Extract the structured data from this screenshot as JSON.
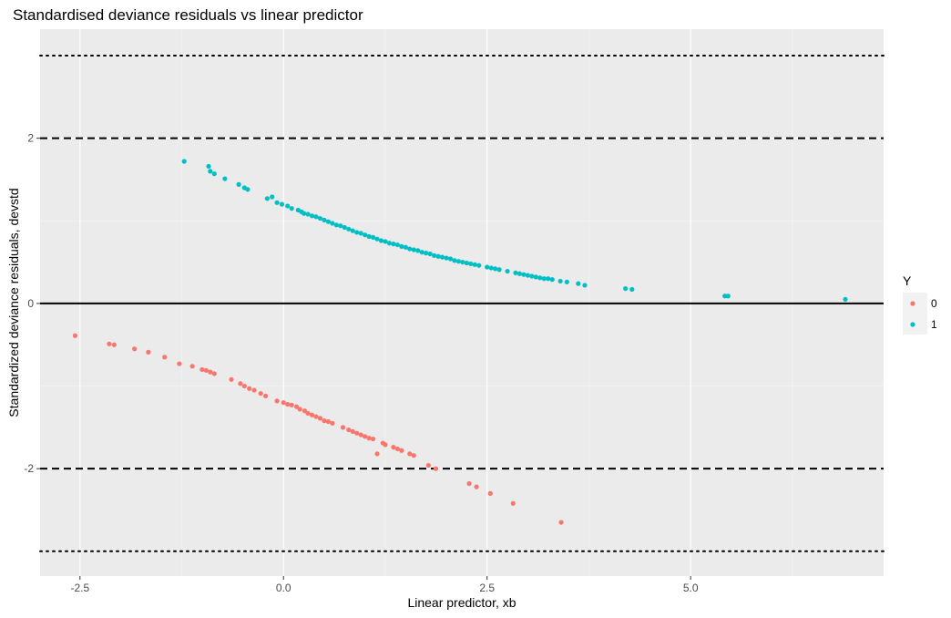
{
  "chart_data": {
    "type": "scatter",
    "title": "Standardised deviance residuals vs linear predictor",
    "xlabel": "Linear predictor, xb",
    "ylabel": "Standardized deviance residuals, devstd",
    "xlim": [
      -2.99,
      7.37
    ],
    "ylim": [
      -3.3,
      3.32
    ],
    "x_ticks": [
      -2.5,
      0.0,
      2.5,
      5.0
    ],
    "x_tick_labels": [
      "-2.5",
      "0.0",
      "2.5",
      "5.0"
    ],
    "y_ticks": [
      -2,
      0,
      2
    ],
    "y_tick_labels": [
      "-2",
      "0",
      "2"
    ],
    "grid": true,
    "background": "#ebebeb",
    "reference_lines": [
      {
        "y": 3,
        "style": "dotted"
      },
      {
        "y": 2,
        "style": "dashed"
      },
      {
        "y": 0,
        "style": "solid"
      },
      {
        "y": -2,
        "style": "dashed"
      },
      {
        "y": -3,
        "style": "dotted"
      }
    ],
    "legend": {
      "title": "Y",
      "position": "right"
    },
    "series": [
      {
        "name": "0",
        "color": "#F8766D",
        "points": [
          [
            -2.56,
            -0.39
          ],
          [
            -2.14,
            -0.49
          ],
          [
            -2.08,
            -0.5
          ],
          [
            -1.83,
            -0.55
          ],
          [
            -1.66,
            -0.59
          ],
          [
            -1.46,
            -0.65
          ],
          [
            -1.28,
            -0.73
          ],
          [
            -1.12,
            -0.76
          ],
          [
            -1.0,
            -0.8
          ],
          [
            -0.95,
            -0.81
          ],
          [
            -0.9,
            -0.83
          ],
          [
            -0.85,
            -0.85
          ],
          [
            -0.64,
            -0.92
          ],
          [
            -0.53,
            -0.97
          ],
          [
            -0.48,
            -1.0
          ],
          [
            -0.42,
            -1.03
          ],
          [
            -0.36,
            -1.05
          ],
          [
            -0.28,
            -1.09
          ],
          [
            -0.22,
            -1.12
          ],
          [
            -0.08,
            -1.18
          ],
          [
            0.0,
            -1.2
          ],
          [
            0.05,
            -1.22
          ],
          [
            0.1,
            -1.23
          ],
          [
            0.16,
            -1.25
          ],
          [
            0.2,
            -1.28
          ],
          [
            0.26,
            -1.3
          ],
          [
            0.3,
            -1.33
          ],
          [
            0.35,
            -1.35
          ],
          [
            0.4,
            -1.37
          ],
          [
            0.45,
            -1.39
          ],
          [
            0.5,
            -1.42
          ],
          [
            0.55,
            -1.43
          ],
          [
            0.6,
            -1.45
          ],
          [
            0.73,
            -1.5
          ],
          [
            0.8,
            -1.53
          ],
          [
            0.85,
            -1.55
          ],
          [
            0.9,
            -1.57
          ],
          [
            0.95,
            -1.59
          ],
          [
            1.0,
            -1.61
          ],
          [
            1.05,
            -1.63
          ],
          [
            1.1,
            -1.64
          ],
          [
            1.22,
            -1.69
          ],
          [
            1.25,
            -1.71
          ],
          [
            1.35,
            -1.74
          ],
          [
            1.4,
            -1.76
          ],
          [
            1.45,
            -1.78
          ],
          [
            1.55,
            -1.82
          ],
          [
            1.6,
            -1.84
          ],
          [
            1.15,
            -1.82
          ],
          [
            1.78,
            -1.96
          ],
          [
            1.87,
            -2.0
          ],
          [
            2.28,
            -2.18
          ],
          [
            2.37,
            -2.22
          ],
          [
            2.54,
            -2.3
          ],
          [
            2.82,
            -2.42
          ],
          [
            3.41,
            -2.65
          ]
        ]
      },
      {
        "name": "1",
        "color": "#00BFC4",
        "points": [
          [
            -1.22,
            1.72
          ],
          [
            -0.92,
            1.66
          ],
          [
            -0.9,
            1.6
          ],
          [
            -0.85,
            1.57
          ],
          [
            -0.72,
            1.51
          ],
          [
            -0.55,
            1.44
          ],
          [
            -0.48,
            1.4
          ],
          [
            -0.44,
            1.38
          ],
          [
            -0.2,
            1.27
          ],
          [
            -0.14,
            1.29
          ],
          [
            -0.08,
            1.22
          ],
          [
            -0.02,
            1.2
          ],
          [
            0.05,
            1.18
          ],
          [
            0.1,
            1.15
          ],
          [
            0.18,
            1.13
          ],
          [
            0.22,
            1.11
          ],
          [
            0.25,
            1.09
          ],
          [
            0.3,
            1.08
          ],
          [
            0.35,
            1.06
          ],
          [
            0.4,
            1.05
          ],
          [
            0.45,
            1.03
          ],
          [
            0.5,
            1.01
          ],
          [
            0.55,
            0.99
          ],
          [
            0.6,
            0.97
          ],
          [
            0.65,
            0.95
          ],
          [
            0.7,
            0.94
          ],
          [
            0.75,
            0.92
          ],
          [
            0.8,
            0.9
          ],
          [
            0.85,
            0.88
          ],
          [
            0.9,
            0.86
          ],
          [
            0.95,
            0.85
          ],
          [
            1.0,
            0.83
          ],
          [
            1.05,
            0.81
          ],
          [
            1.1,
            0.8
          ],
          [
            1.15,
            0.78
          ],
          [
            1.2,
            0.76
          ],
          [
            1.25,
            0.75
          ],
          [
            1.3,
            0.73
          ],
          [
            1.35,
            0.72
          ],
          [
            1.4,
            0.71
          ],
          [
            1.45,
            0.69
          ],
          [
            1.5,
            0.68
          ],
          [
            1.55,
            0.66
          ],
          [
            1.6,
            0.65
          ],
          [
            1.65,
            0.64
          ],
          [
            1.7,
            0.62
          ],
          [
            1.75,
            0.61
          ],
          [
            1.8,
            0.6
          ],
          [
            1.85,
            0.58
          ],
          [
            1.9,
            0.57
          ],
          [
            1.95,
            0.56
          ],
          [
            2.0,
            0.55
          ],
          [
            2.05,
            0.54
          ],
          [
            2.1,
            0.52
          ],
          [
            2.15,
            0.51
          ],
          [
            2.2,
            0.5
          ],
          [
            2.25,
            0.49
          ],
          [
            2.3,
            0.48
          ],
          [
            2.35,
            0.47
          ],
          [
            2.4,
            0.46
          ],
          [
            2.5,
            0.44
          ],
          [
            2.55,
            0.43
          ],
          [
            2.6,
            0.42
          ],
          [
            2.65,
            0.41
          ],
          [
            2.75,
            0.39
          ],
          [
            2.85,
            0.37
          ],
          [
            2.9,
            0.36
          ],
          [
            2.95,
            0.35
          ],
          [
            3.0,
            0.34
          ],
          [
            3.05,
            0.33
          ],
          [
            3.1,
            0.32
          ],
          [
            3.15,
            0.31
          ],
          [
            3.2,
            0.3
          ],
          [
            3.25,
            0.3
          ],
          [
            3.3,
            0.29
          ],
          [
            3.4,
            0.27
          ],
          [
            3.48,
            0.26
          ],
          [
            3.62,
            0.24
          ],
          [
            3.7,
            0.22
          ],
          [
            4.2,
            0.18
          ],
          [
            4.28,
            0.17
          ],
          [
            5.42,
            0.09
          ],
          [
            5.46,
            0.09
          ],
          [
            6.9,
            0.05
          ]
        ]
      }
    ]
  }
}
